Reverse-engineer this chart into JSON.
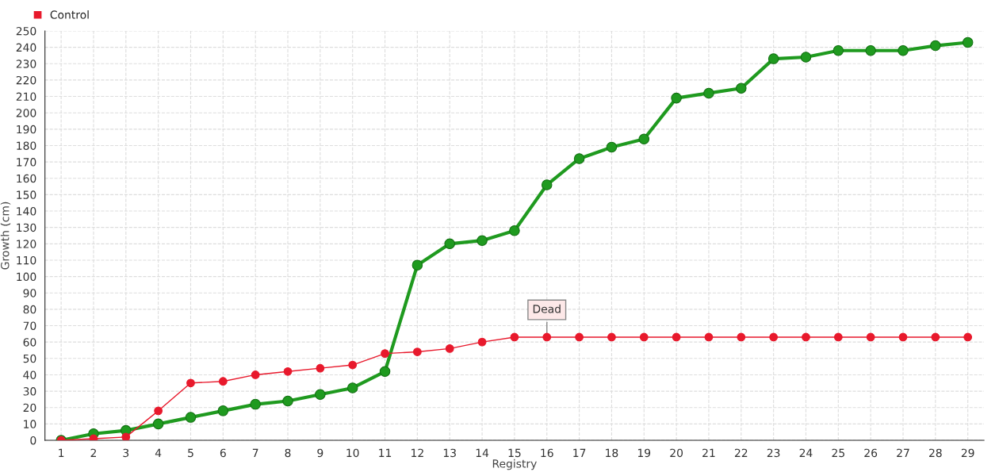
{
  "chart_data": {
    "type": "line",
    "xlabel": "Registry",
    "ylabel": "Growth (cm)",
    "categories": [
      "1",
      "2",
      "3",
      "4",
      "5",
      "6",
      "7",
      "8",
      "9",
      "10",
      "11",
      "12",
      "13",
      "14",
      "15",
      "16",
      "17",
      "18",
      "19",
      "20",
      "21",
      "22",
      "23",
      "24",
      "25",
      "26",
      "27",
      "28",
      "29"
    ],
    "series": [
      {
        "color": "#1f9a1f",
        "values": [
          0,
          4,
          6,
          10,
          14,
          18,
          22,
          24,
          28,
          32,
          42,
          107,
          120,
          122,
          128,
          156,
          172,
          179,
          184,
          209,
          212,
          215,
          233,
          234,
          238,
          238,
          238,
          241,
          243
        ]
      },
      {
        "name": "Control",
        "color": "#e8192c",
        "values": [
          0,
          1,
          2,
          18,
          35,
          36,
          40,
          42,
          44,
          46,
          53,
          54,
          56,
          60,
          63,
          63,
          63,
          63,
          63,
          63,
          63,
          63,
          63,
          63,
          63,
          63,
          63,
          63,
          63
        ]
      }
    ],
    "ylim": [
      0,
      250
    ],
    "yticks": [
      0,
      10,
      20,
      30,
      40,
      50,
      60,
      70,
      80,
      90,
      100,
      110,
      120,
      130,
      140,
      150,
      160,
      170,
      180,
      190,
      200,
      210,
      220,
      230,
      240,
      250
    ],
    "annotations": [
      {
        "text": "Dead",
        "x": "16",
        "y": 63
      }
    ],
    "grid": true,
    "legend": "top left",
    "marker": "circle",
    "line_style": "solid"
  }
}
